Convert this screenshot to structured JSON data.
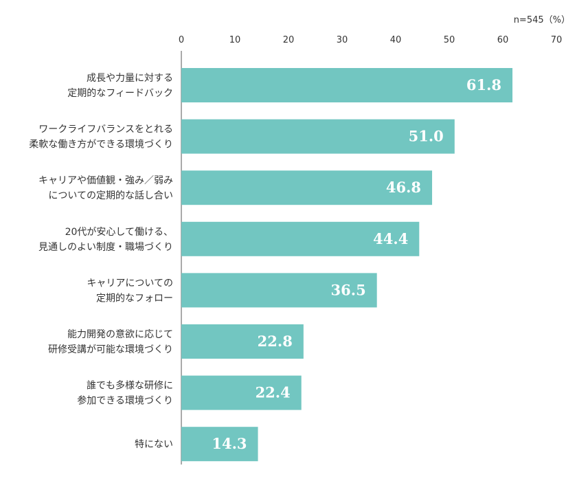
{
  "chart_data": {
    "type": "bar",
    "orientation": "horizontal",
    "note": "n=545（%）",
    "xlim": [
      0,
      70
    ],
    "ticks": [
      "0",
      "10",
      "20",
      "30",
      "40",
      "50",
      "60",
      "70"
    ],
    "bar_color": "#72c6c1",
    "categories": [
      [
        "成長や力量に対する",
        "定期的なフィードバック"
      ],
      [
        "ワークライフバランスをとれる",
        "柔軟な働き方ができる環境づくり"
      ],
      [
        "キャリアや価値観・強み／弱み",
        "についての定期的な話し合い"
      ],
      [
        "20代が安心して働ける、",
        "見通しのよい制度・職場づくり"
      ],
      [
        "キャリアについての",
        "定期的なフォロー"
      ],
      [
        "能力開発の意欲に応じて",
        "研修受講が可能な環境づくり"
      ],
      [
        "誰でも多様な研修に",
        "参加できる環境づくり"
      ],
      [
        "特にない"
      ]
    ],
    "values": [
      61.8,
      51.0,
      46.8,
      44.4,
      36.5,
      22.8,
      22.4,
      14.3
    ],
    "value_labels": [
      "61.8",
      "51.0",
      "46.8",
      "44.4",
      "36.5",
      "22.8",
      "22.4",
      "14.3"
    ]
  }
}
